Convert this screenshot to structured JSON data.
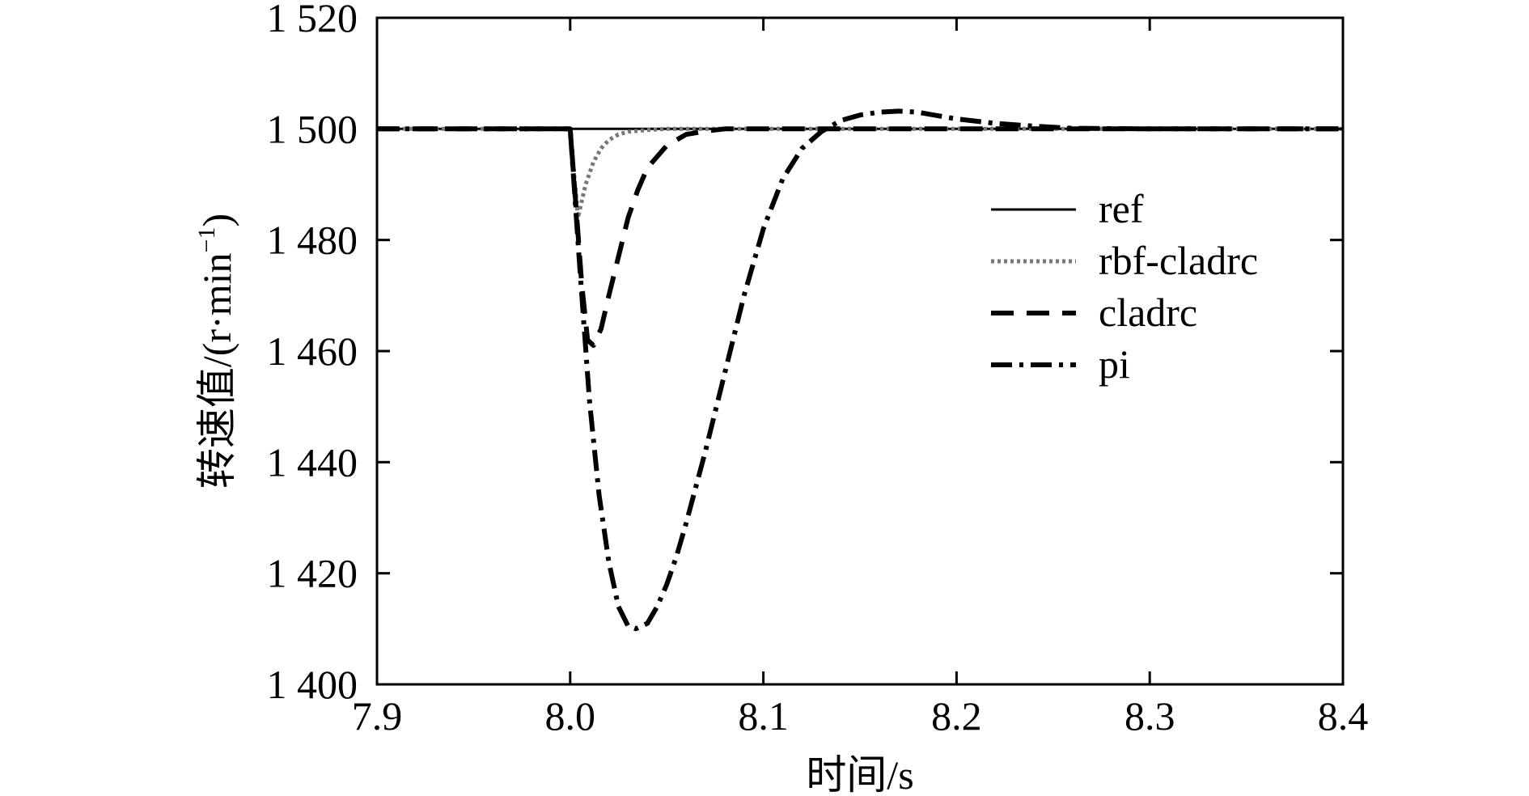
{
  "chart_data": {
    "type": "line",
    "xlabel": "时间/s",
    "ylabel": "转速值/(r·min",
    "ylabel_sup": "−1",
    "ylabel_close": ")",
    "xlim": [
      7.9,
      8.4
    ],
    "ylim": [
      1400,
      1520
    ],
    "xticks": [
      7.9,
      8.0,
      8.1,
      8.2,
      8.3,
      8.4
    ],
    "xtick_labels": [
      "7.9",
      "8.0",
      "8.1",
      "8.2",
      "8.3",
      "8.4"
    ],
    "yticks": [
      1400,
      1420,
      1440,
      1460,
      1480,
      1500,
      1520
    ],
    "ytick_labels": [
      "1 400",
      "1 420",
      "1 440",
      "1 460",
      "1 480",
      "1 500",
      "1 520"
    ],
    "grid": false,
    "legend_position": "right",
    "series": [
      {
        "name": "ref",
        "style": "solid",
        "color": "#000000",
        "x": [
          7.9,
          8.4
        ],
        "y": [
          1500,
          1500
        ]
      },
      {
        "name": "rbf-cladrc",
        "style": "dotted",
        "color": "#777777",
        "x": [
          7.9,
          8.0,
          8.004,
          8.008,
          8.012,
          8.016,
          8.02,
          8.025,
          8.03,
          8.04,
          8.05,
          8.07,
          8.1,
          8.4
        ],
        "y": [
          1500,
          1500,
          1484,
          1490,
          1494,
          1496.5,
          1498,
          1499,
          1499.5,
          1499.8,
          1500,
          1500,
          1500,
          1500
        ]
      },
      {
        "name": "cladrc",
        "style": "dashed",
        "color": "#000000",
        "x": [
          7.9,
          8.0,
          8.003,
          8.006,
          8.009,
          8.012,
          8.016,
          8.02,
          8.025,
          8.03,
          8.035,
          8.04,
          8.05,
          8.06,
          8.07,
          8.08,
          8.1,
          8.4
        ],
        "y": [
          1500,
          1500,
          1486,
          1472,
          1462,
          1461,
          1464,
          1470,
          1477,
          1484,
          1489,
          1493,
          1497,
          1499,
          1499.6,
          1500,
          1500,
          1500
        ]
      },
      {
        "name": "pi",
        "style": "dashdot",
        "color": "#000000",
        "x": [
          7.9,
          8.0,
          8.005,
          8.01,
          8.015,
          8.02,
          8.025,
          8.03,
          8.034,
          8.04,
          8.045,
          8.05,
          8.055,
          8.06,
          8.07,
          8.08,
          8.09,
          8.1,
          8.11,
          8.12,
          8.13,
          8.14,
          8.15,
          8.16,
          8.17,
          8.18,
          8.19,
          8.2,
          8.22,
          8.24,
          8.26,
          8.3,
          8.4
        ],
        "y": [
          1500,
          1500,
          1475,
          1451,
          1434,
          1422,
          1414,
          1410.5,
          1410,
          1411,
          1414,
          1418,
          1423,
          1429,
          1442,
          1456,
          1470,
          1482,
          1491,
          1496.5,
          1499.5,
          1501.5,
          1502.5,
          1503,
          1503.2,
          1503,
          1502.4,
          1501.8,
          1501,
          1500.5,
          1500.1,
          1500,
          1500
        ]
      }
    ]
  }
}
